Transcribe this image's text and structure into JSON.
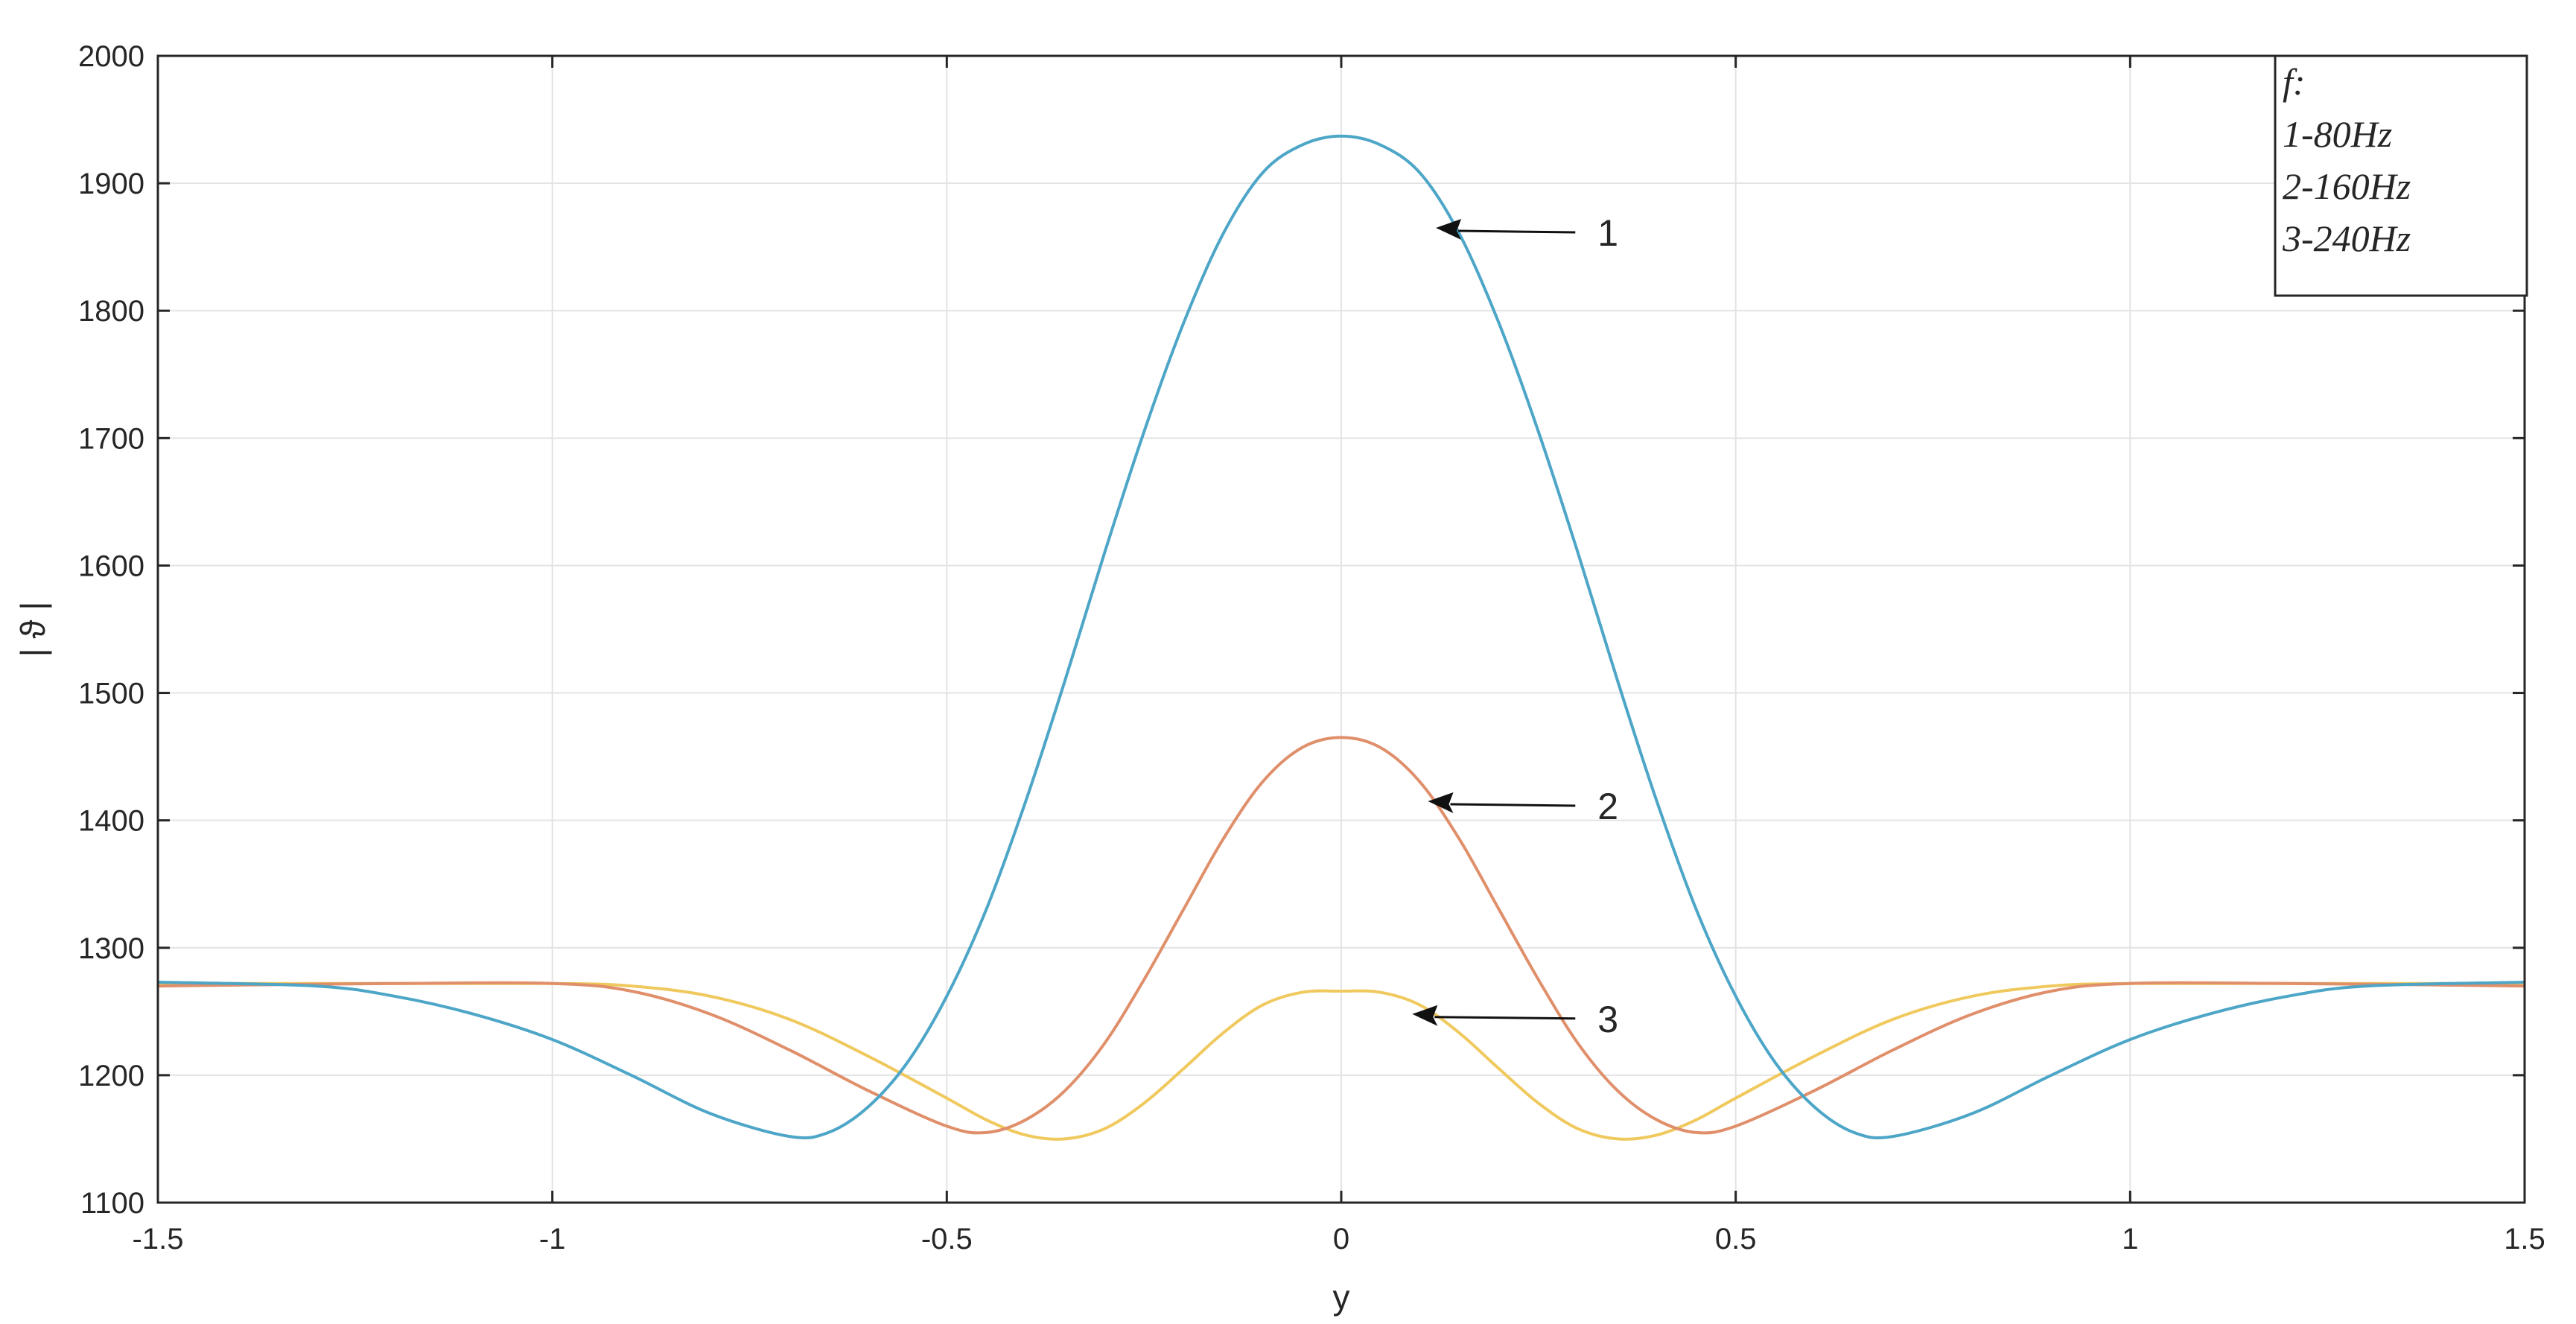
{
  "chart_data": {
    "type": "line",
    "title": "",
    "xlabel": "y",
    "ylabel": "| ϑ |",
    "xlim": [
      -1.5,
      1.5
    ],
    "ylim": [
      1100,
      2000
    ],
    "grid": true,
    "x_ticks": [
      -1.5,
      -1,
      -0.5,
      0,
      0.5,
      1,
      1.5
    ],
    "x_tick_labels": [
      "-1.5",
      "-1",
      "-0.5",
      "0",
      "0.5",
      "1",
      "1.5"
    ],
    "y_ticks": [
      1100,
      1200,
      1300,
      1400,
      1500,
      1600,
      1700,
      1800,
      1900,
      2000
    ],
    "y_tick_labels": [
      "1100",
      "1200",
      "1300",
      "1400",
      "1500",
      "1600",
      "1700",
      "1800",
      "1900",
      "2000"
    ],
    "legend": {
      "placement": "top-right",
      "lines": [
        "f:",
        "1-80Hz",
        "2-160Hz",
        "3-240Hz"
      ]
    },
    "series": [
      {
        "label": "1",
        "color": "#4DA6C7",
        "x": [
          -1.5,
          -1.3,
          -1.2,
          -1.1,
          -1.0,
          -0.9,
          -0.8,
          -0.7,
          -0.65,
          -0.6,
          -0.55,
          -0.5,
          -0.45,
          -0.4,
          -0.35,
          -0.3,
          -0.25,
          -0.2,
          -0.15,
          -0.1,
          -0.05,
          0,
          0.05,
          0.1,
          0.15,
          0.2,
          0.25,
          0.3,
          0.35,
          0.4,
          0.45,
          0.5,
          0.55,
          0.6,
          0.65,
          0.7,
          0.8,
          0.9,
          1.0,
          1.1,
          1.2,
          1.3,
          1.5
        ],
        "y": [
          1273,
          1270,
          1262,
          1248,
          1228,
          1200,
          1170,
          1152,
          1155,
          1175,
          1210,
          1262,
          1330,
          1415,
          1510,
          1610,
          1705,
          1790,
          1860,
          1908,
          1930,
          1937,
          1930,
          1908,
          1860,
          1790,
          1705,
          1610,
          1510,
          1415,
          1330,
          1262,
          1210,
          1175,
          1155,
          1152,
          1170,
          1200,
          1228,
          1248,
          1262,
          1270,
          1273
        ]
      },
      {
        "label": "2",
        "color": "#E08F6B",
        "x": [
          -1.5,
          -1.2,
          -1.0,
          -0.9,
          -0.8,
          -0.7,
          -0.6,
          -0.5,
          -0.45,
          -0.4,
          -0.35,
          -0.3,
          -0.25,
          -0.2,
          -0.15,
          -0.1,
          -0.05,
          0,
          0.05,
          0.1,
          0.15,
          0.2,
          0.25,
          0.3,
          0.35,
          0.4,
          0.45,
          0.5,
          0.6,
          0.7,
          0.8,
          0.9,
          1.0,
          1.2,
          1.5
        ],
        "y": [
          1270,
          1272,
          1272,
          1266,
          1248,
          1220,
          1188,
          1160,
          1155,
          1165,
          1188,
          1225,
          1275,
          1330,
          1385,
          1430,
          1457,
          1465,
          1457,
          1430,
          1385,
          1330,
          1275,
          1225,
          1188,
          1165,
          1155,
          1160,
          1188,
          1220,
          1248,
          1266,
          1272,
          1272,
          1270
        ]
      },
      {
        "label": "3",
        "color": "#F0C95E",
        "x": [
          -1.5,
          -1.2,
          -1.0,
          -0.9,
          -0.8,
          -0.7,
          -0.6,
          -0.5,
          -0.45,
          -0.4,
          -0.35,
          -0.3,
          -0.25,
          -0.2,
          -0.15,
          -0.1,
          -0.05,
          0,
          0.05,
          0.1,
          0.15,
          0.2,
          0.25,
          0.3,
          0.35,
          0.4,
          0.45,
          0.5,
          0.6,
          0.7,
          0.8,
          0.9,
          1.0,
          1.2,
          1.5
        ],
        "y": [
          1272,
          1272,
          1272,
          1270,
          1262,
          1244,
          1215,
          1182,
          1165,
          1153,
          1150,
          1158,
          1178,
          1205,
          1233,
          1255,
          1265,
          1266,
          1265,
          1255,
          1233,
          1205,
          1178,
          1158,
          1150,
          1153,
          1165,
          1182,
          1215,
          1244,
          1262,
          1270,
          1272,
          1272,
          1272
        ]
      }
    ],
    "annotations": [
      {
        "text": "1",
        "arrow_to": [
          0.12,
          1865
        ]
      },
      {
        "text": "2",
        "arrow_to": [
          0.11,
          1415
        ]
      },
      {
        "text": "3",
        "arrow_to": [
          0.09,
          1248
        ]
      }
    ]
  }
}
